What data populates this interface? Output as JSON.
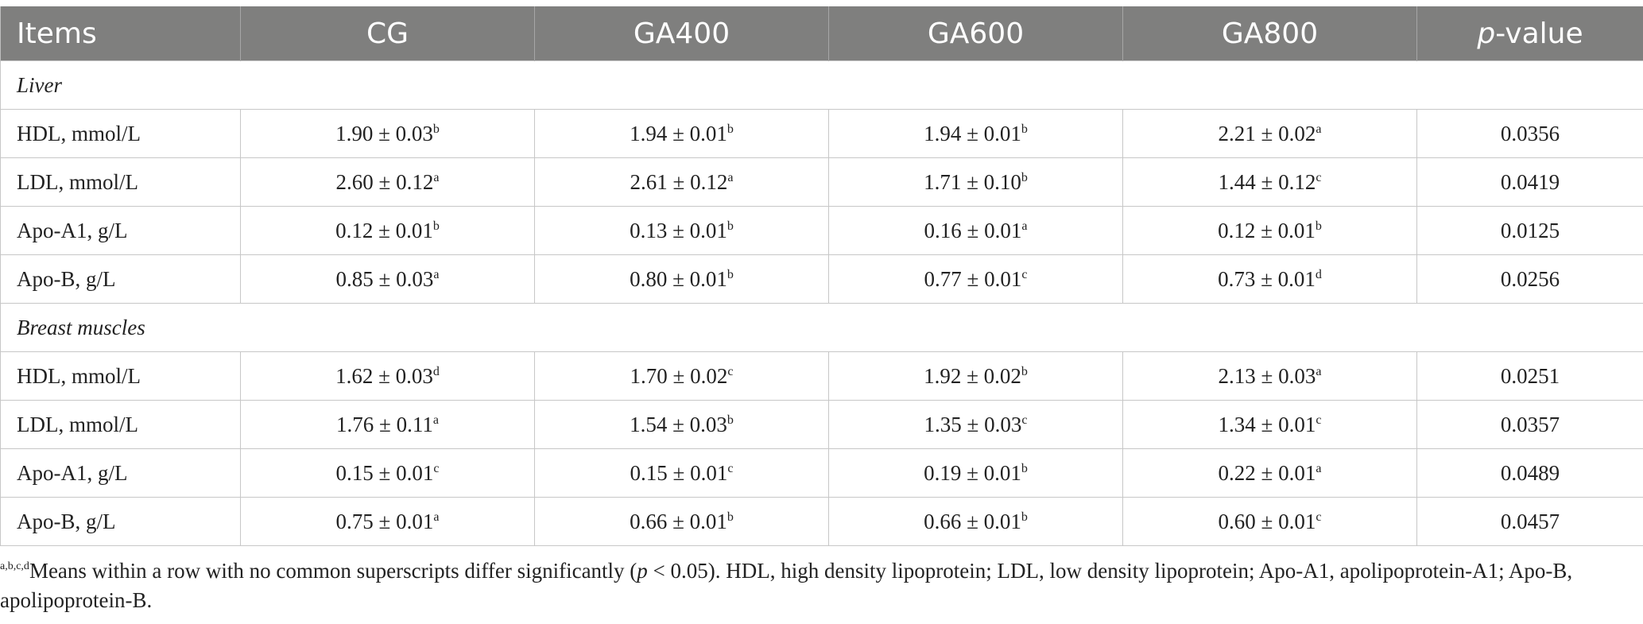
{
  "table": {
    "header": {
      "items": "Items",
      "cg": "CG",
      "ga400": "GA400",
      "ga600": "GA600",
      "ga800": "GA800",
      "p_italic": "p",
      "p_rest": "-value"
    },
    "sections": [
      {
        "title": "Liver",
        "rows": [
          {
            "label": "HDL, mmol/L",
            "cells": [
              {
                "v": "1.90 ± 0.03",
                "s": "b"
              },
              {
                "v": "1.94 ± 0.01",
                "s": "b"
              },
              {
                "v": "1.94 ± 0.01",
                "s": "b"
              },
              {
                "v": "2.21 ± 0.02",
                "s": "a"
              }
            ],
            "p": "0.0356"
          },
          {
            "label": "LDL, mmol/L",
            "cells": [
              {
                "v": "2.60 ± 0.12",
                "s": "a"
              },
              {
                "v": "2.61 ± 0.12",
                "s": "a"
              },
              {
                "v": "1.71 ± 0.10",
                "s": "b"
              },
              {
                "v": "1.44 ± 0.12",
                "s": "c"
              }
            ],
            "p": "0.0419"
          },
          {
            "label": "Apo-A1, g/L",
            "cells": [
              {
                "v": "0.12 ± 0.01",
                "s": "b"
              },
              {
                "v": "0.13 ± 0.01",
                "s": "b"
              },
              {
                "v": "0.16 ± 0.01",
                "s": "a"
              },
              {
                "v": "0.12 ± 0.01",
                "s": "b"
              }
            ],
            "p": "0.0125"
          },
          {
            "label": "Apo-B, g/L",
            "cells": [
              {
                "v": "0.85 ± 0.03",
                "s": "a"
              },
              {
                "v": "0.80 ± 0.01",
                "s": "b"
              },
              {
                "v": "0.77 ± 0.01",
                "s": "c"
              },
              {
                "v": "0.73 ± 0.01",
                "s": "d"
              }
            ],
            "p": "0.0256"
          }
        ]
      },
      {
        "title": "Breast muscles",
        "rows": [
          {
            "label": "HDL, mmol/L",
            "cells": [
              {
                "v": "1.62 ± 0.03",
                "s": "d"
              },
              {
                "v": "1.70 ± 0.02",
                "s": "c"
              },
              {
                "v": "1.92 ± 0.02",
                "s": "b"
              },
              {
                "v": "2.13 ± 0.03",
                "s": "a"
              }
            ],
            "p": "0.0251"
          },
          {
            "label": "LDL, mmol/L",
            "cells": [
              {
                "v": "1.76 ± 0.11",
                "s": "a"
              },
              {
                "v": "1.54 ± 0.03",
                "s": "b"
              },
              {
                "v": "1.35 ± 0.03",
                "s": "c"
              },
              {
                "v": "1.34 ± 0.01",
                "s": "c"
              }
            ],
            "p": "0.0357"
          },
          {
            "label": "Apo-A1, g/L",
            "cells": [
              {
                "v": "0.15 ± 0.01",
                "s": "c"
              },
              {
                "v": "0.15 ± 0.01",
                "s": "c"
              },
              {
                "v": "0.19 ± 0.01",
                "s": "b"
              },
              {
                "v": "0.22 ± 0.01",
                "s": "a"
              }
            ],
            "p": "0.0489"
          },
          {
            "label": "Apo-B, g/L",
            "cells": [
              {
                "v": "0.75 ± 0.01",
                "s": "a"
              },
              {
                "v": "0.66 ± 0.01",
                "s": "b"
              },
              {
                "v": "0.66 ± 0.01",
                "s": "b"
              },
              {
                "v": "0.60 ± 0.01",
                "s": "c"
              }
            ],
            "p": "0.0457"
          }
        ]
      }
    ]
  },
  "footnote": {
    "sup": "a,b,c,d",
    "text1": "Means within a row with no common superscripts differ significantly (",
    "p": "p",
    "text2": " < 0.05). HDL, high density lipoprotein; LDL, low density lipoprotein; Apo-A1, apolipoprotein-A1; Apo-B, apolipoprotein-B."
  },
  "colors": {
    "header_bg": "#7f7f7e",
    "header_text": "#ffffff",
    "border": "#c7c7c7"
  }
}
